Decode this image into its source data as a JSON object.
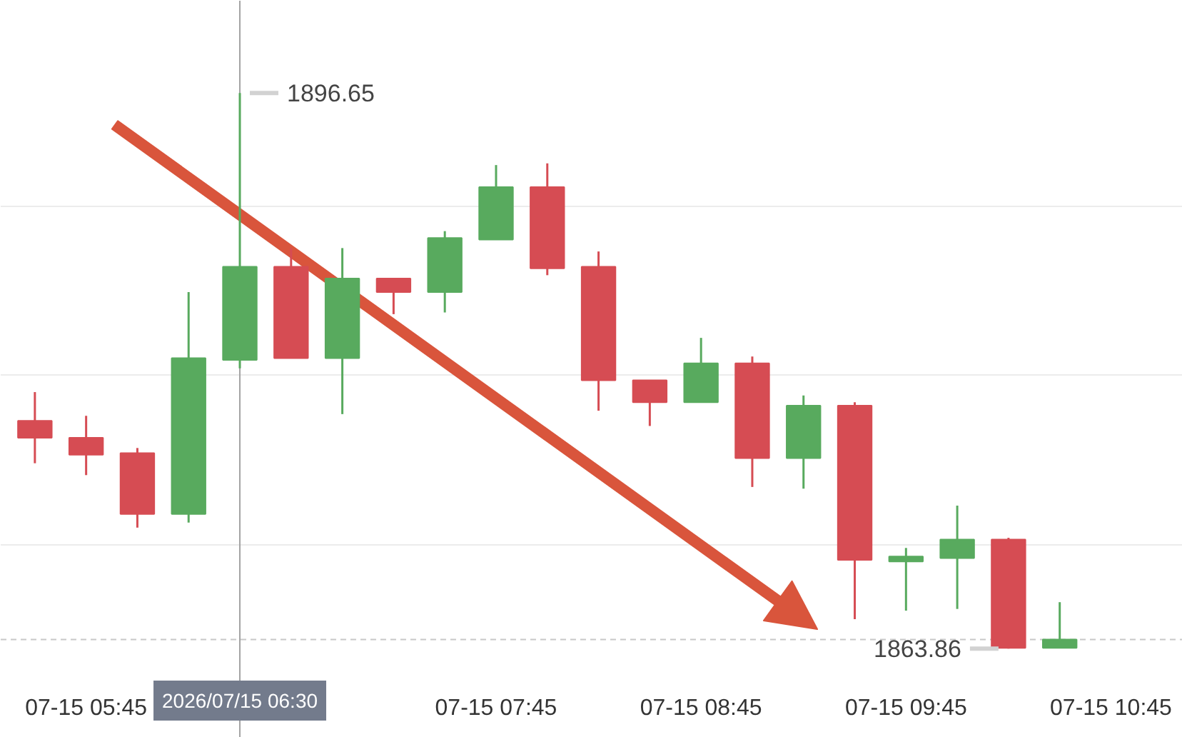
{
  "chart_data": {
    "type": "candlestick",
    "x": [
      "2026-07-15T05:30",
      "2026-07-15T05:45",
      "2026-07-15T06:00",
      "2026-07-15T06:15",
      "2026-07-15T06:30",
      "2026-07-15T06:45",
      "2026-07-15T07:00",
      "2026-07-15T07:15",
      "2026-07-15T07:30",
      "2026-07-15T07:45",
      "2026-07-15T08:00",
      "2026-07-15T08:15",
      "2026-07-15T08:30",
      "2026-07-15T08:45",
      "2026-07-15T09:00",
      "2026-07-15T09:15",
      "2026-07-15T09:30",
      "2026-07-15T09:45",
      "2026-07-15T10:00",
      "2026-07-15T10:15",
      "2026-07-15T10:30"
    ],
    "ohlc": [
      [
        1877.3,
        1879.0,
        1874.8,
        1876.3
      ],
      [
        1876.3,
        1877.6,
        1874.1,
        1875.3
      ],
      [
        1875.4,
        1875.7,
        1871.0,
        1871.8
      ],
      [
        1871.8,
        1884.9,
        1871.3,
        1881.0
      ],
      [
        1880.9,
        1896.65,
        1880.4,
        1886.4
      ],
      [
        1886.4,
        1887.5,
        1881.0,
        1881.0
      ],
      [
        1881.0,
        1887.5,
        1877.7,
        1885.7
      ],
      [
        1885.7,
        1885.7,
        1883.6,
        1884.9
      ],
      [
        1884.9,
        1888.5,
        1883.7,
        1888.1
      ],
      [
        1888.0,
        1892.4,
        1888.0,
        1891.1
      ],
      [
        1891.1,
        1892.5,
        1885.9,
        1886.3
      ],
      [
        1886.4,
        1887.3,
        1877.9,
        1879.7
      ],
      [
        1879.7,
        1879.7,
        1877.0,
        1878.4
      ],
      [
        1878.4,
        1882.2,
        1878.4,
        1880.7
      ],
      [
        1880.7,
        1881.1,
        1873.4,
        1875.1
      ],
      [
        1875.1,
        1878.8,
        1873.3,
        1878.2
      ],
      [
        1878.2,
        1878.4,
        1865.6,
        1869.1
      ],
      [
        1869.0,
        1869.8,
        1866.1,
        1869.3
      ],
      [
        1869.2,
        1872.3,
        1866.2,
        1870.3
      ],
      [
        1870.3,
        1870.4,
        1863.86,
        1863.9
      ],
      [
        1863.9,
        1866.6,
        1863.9,
        1864.4
      ]
    ],
    "colors": [
      "#d64c53",
      "#d64c53",
      "#d64c53",
      "#58aa5e",
      "#58aa5e",
      "#d64c53",
      "#58aa5e",
      "#d64c53",
      "#58aa5e",
      "#58aa5e",
      "#d64c53",
      "#d64c53",
      "#d64c53",
      "#58aa5e",
      "#d64c53",
      "#58aa5e",
      "#d64c53",
      "#58aa5e",
      "#58aa5e",
      "#d64c53",
      "#58aa5e"
    ],
    "xlim": [
      "2026-07-15T05:20",
      "2026-07-15T11:06"
    ],
    "ylim": [
      1858.6,
      1902.1
    ],
    "xticks": [
      {
        "value": "2026-07-15T05:45",
        "label": "07-15 05:45"
      },
      {
        "value": "2026-07-15T07:45",
        "label": "07-15 07:45"
      },
      {
        "value": "2026-07-15T08:45",
        "label": "07-15 08:45"
      },
      {
        "value": "2026-07-15T09:45",
        "label": "07-15 09:45"
      },
      {
        "value": "2026-07-15T10:45",
        "label": "07-15 10:45"
      }
    ],
    "yticks": [
      {
        "value": 1870,
        "label": null
      },
      {
        "value": 1880,
        "label": null
      },
      {
        "value": 1890,
        "label": null
      }
    ],
    "grid": "y",
    "tick_labels": "x",
    "ref_lines": [
      {
        "axis": "x",
        "value": "2026-07-15T06:30",
        "label": "2026/07/15 06:30",
        "color": "#a3a3a3",
        "line_style": "solid"
      },
      {
        "axis": "y",
        "value": 1864.4,
        "color": "#c8c8c8",
        "line_style": "dashed"
      }
    ],
    "annotations": [
      {
        "text": "1896.65",
        "x": "2026-07-15T06:30",
        "y": 1896.65
      },
      {
        "text": "1863.86",
        "x": "2026-07-15T10:15",
        "y": 1863.86
      }
    ]
  }
}
